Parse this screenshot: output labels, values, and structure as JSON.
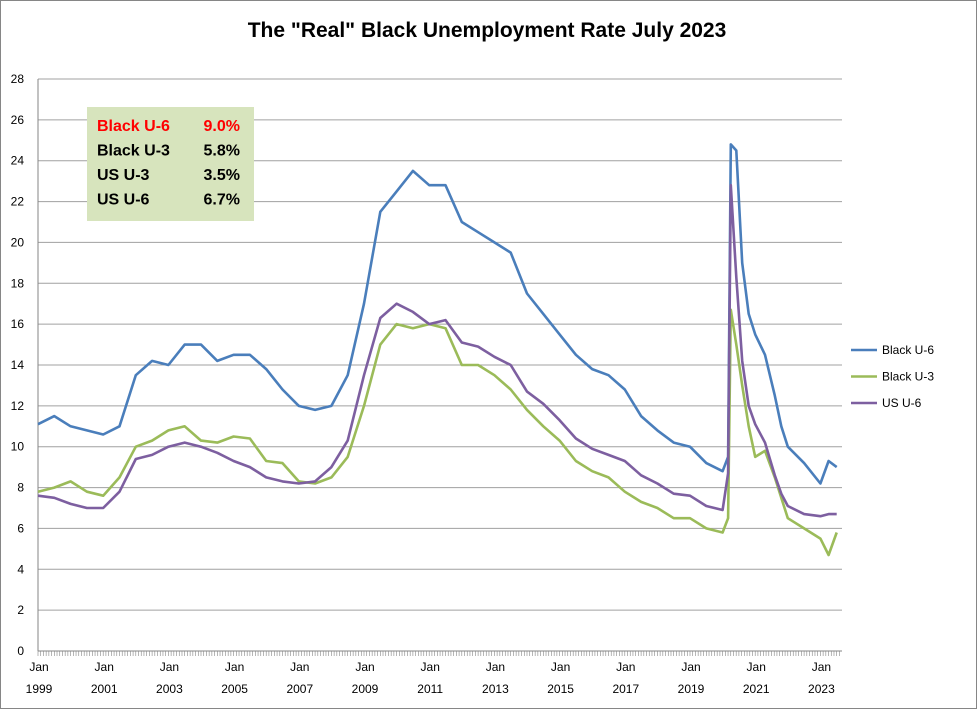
{
  "chart_data": {
    "type": "line",
    "title": "The \"Real\" Black Unemployment Rate July 2023",
    "xlabel": "",
    "ylabel": "",
    "ylim": [
      0,
      28
    ],
    "yticks": [
      0,
      2,
      4,
      6,
      8,
      10,
      12,
      14,
      16,
      18,
      20,
      22,
      24,
      26,
      28
    ],
    "xlim": [
      1999.0,
      2023.58
    ],
    "xtick_labels": [
      {
        "x": 1999,
        "line1": "Jan",
        "line2": "1999"
      },
      {
        "x": 2001,
        "line1": "Jan",
        "line2": "2001"
      },
      {
        "x": 2003,
        "line1": "Jan",
        "line2": "2003"
      },
      {
        "x": 2005,
        "line1": "Jan",
        "line2": "2005"
      },
      {
        "x": 2007,
        "line1": "Jan",
        "line2": "2007"
      },
      {
        "x": 2009,
        "line1": "Jan",
        "line2": "2009"
      },
      {
        "x": 2011,
        "line1": "Jan",
        "line2": "2011"
      },
      {
        "x": 2013,
        "line1": "Jan",
        "line2": "2013"
      },
      {
        "x": 2015,
        "line1": "Jan",
        "line2": "2015"
      },
      {
        "x": 2017,
        "line1": "Jan",
        "line2": "2017"
      },
      {
        "x": 2019,
        "line1": "Jan",
        "line2": "2019"
      },
      {
        "x": 2021,
        "line1": "Jan",
        "line2": "2021"
      },
      {
        "x": 2023,
        "line1": "Jan",
        "line2": "2023"
      }
    ],
    "grid": "horizontal",
    "legend_position": "right",
    "x": [
      1999.0,
      1999.5,
      2000.0,
      2000.5,
      2001.0,
      2001.5,
      2002.0,
      2002.5,
      2003.0,
      2003.5,
      2004.0,
      2004.5,
      2005.0,
      2005.5,
      2006.0,
      2006.5,
      2007.0,
      2007.5,
      2008.0,
      2008.5,
      2009.0,
      2009.5,
      2010.0,
      2010.5,
      2011.0,
      2011.5,
      2012.0,
      2012.5,
      2013.0,
      2013.5,
      2014.0,
      2014.5,
      2015.0,
      2015.5,
      2016.0,
      2016.5,
      2017.0,
      2017.5,
      2018.0,
      2018.5,
      2019.0,
      2019.5,
      2020.0,
      2020.17,
      2020.25,
      2020.42,
      2020.6,
      2020.8,
      2021.0,
      2021.3,
      2021.6,
      2021.8,
      2022.0,
      2022.5,
      2023.0,
      2023.25,
      2023.5
    ],
    "series": [
      {
        "name": "Black U-6",
        "color": "#4a7ebb",
        "values": [
          11.1,
          11.5,
          11.0,
          10.8,
          10.6,
          11.0,
          13.5,
          14.2,
          14.0,
          15.0,
          15.0,
          14.2,
          14.5,
          14.5,
          13.8,
          12.8,
          12.0,
          11.8,
          12.0,
          13.5,
          17.0,
          21.5,
          22.5,
          23.5,
          22.8,
          22.8,
          21.0,
          20.5,
          20.0,
          19.5,
          17.5,
          16.5,
          15.5,
          14.5,
          13.8,
          13.5,
          12.8,
          11.5,
          10.8,
          10.2,
          10.0,
          9.2,
          8.8,
          9.5,
          24.8,
          24.5,
          19.0,
          16.5,
          15.5,
          14.5,
          12.5,
          11.0,
          10.0,
          9.2,
          8.2,
          9.3,
          9.0
        ]
      },
      {
        "name": "Black U-3",
        "color": "#9bbb59",
        "values": [
          7.8,
          8.0,
          8.3,
          7.8,
          7.6,
          8.5,
          10.0,
          10.3,
          10.8,
          11.0,
          10.3,
          10.2,
          10.5,
          10.4,
          9.3,
          9.2,
          8.3,
          8.2,
          8.5,
          9.5,
          12.0,
          15.0,
          16.0,
          15.8,
          16.0,
          15.8,
          14.0,
          14.0,
          13.5,
          12.8,
          11.8,
          11.0,
          10.3,
          9.3,
          8.8,
          8.5,
          7.8,
          7.3,
          7.0,
          6.5,
          6.5,
          6.0,
          5.8,
          6.5,
          16.7,
          15.0,
          13.0,
          11.0,
          9.5,
          9.8,
          8.5,
          7.5,
          6.5,
          6.0,
          5.5,
          4.7,
          5.8
        ]
      },
      {
        "name": "US U-6",
        "color": "#7d5fa0",
        "values": [
          7.6,
          7.5,
          7.2,
          7.0,
          7.0,
          7.8,
          9.4,
          9.6,
          10.0,
          10.2,
          10.0,
          9.7,
          9.3,
          9.0,
          8.5,
          8.3,
          8.2,
          8.3,
          9.0,
          10.3,
          13.5,
          16.3,
          17.0,
          16.6,
          16.0,
          16.2,
          15.1,
          14.9,
          14.4,
          14.0,
          12.7,
          12.1,
          11.3,
          10.4,
          9.9,
          9.6,
          9.3,
          8.6,
          8.2,
          7.7,
          7.6,
          7.1,
          6.9,
          8.7,
          22.8,
          18.3,
          14.2,
          12.0,
          11.1,
          10.2,
          8.6,
          7.7,
          7.1,
          6.7,
          6.6,
          6.7,
          6.7
        ]
      }
    ],
    "annotation_box": {
      "background": "#d7e4bd",
      "rows": [
        {
          "label": "Black U-6",
          "value": "9.0%",
          "color": "#ff0000"
        },
        {
          "label": "Black U-3",
          "value": "5.8%",
          "color": "#000000"
        },
        {
          "label": "US U-3",
          "value": "3.5%",
          "color": "#000000"
        },
        {
          "label": "US U-6",
          "value": "6.7%",
          "color": "#000000"
        }
      ]
    }
  }
}
